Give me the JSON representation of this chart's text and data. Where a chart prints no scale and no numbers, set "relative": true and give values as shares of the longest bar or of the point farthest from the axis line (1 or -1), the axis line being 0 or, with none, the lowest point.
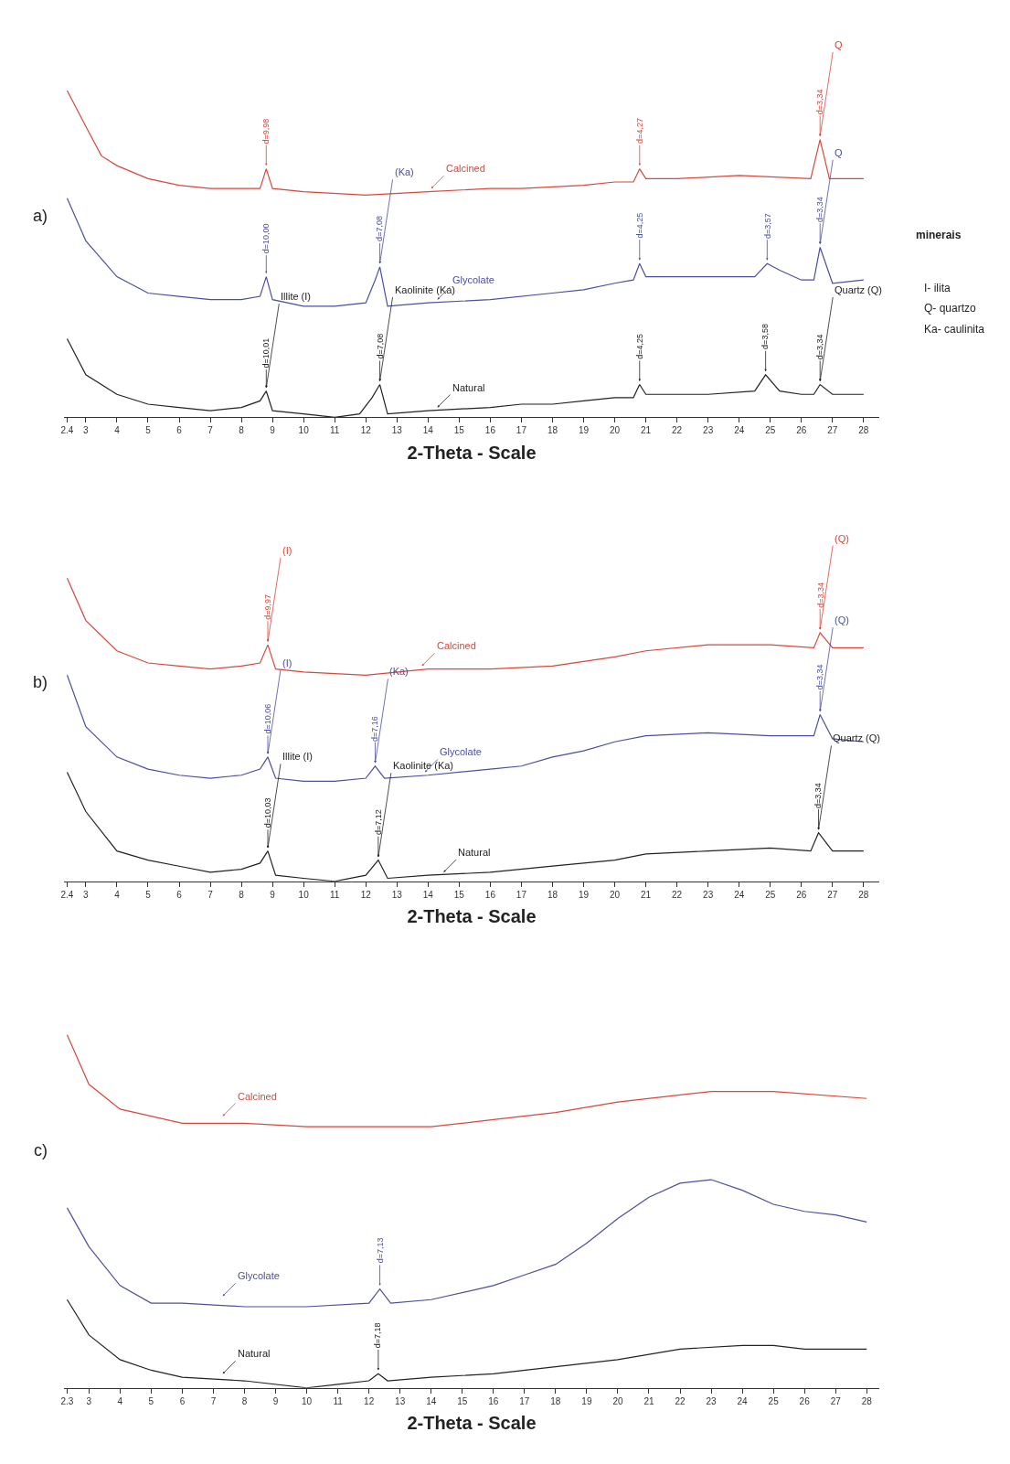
{
  "chart_data": [
    {
      "type": "line",
      "relative": true,
      "xlabel": "2-Theta - Scale",
      "tick_labels": "x",
      "xlim": [
        2.3,
        28.5
      ],
      "xticks": [
        2.4,
        3,
        4,
        5,
        6,
        7,
        8,
        9,
        10,
        11,
        12,
        13,
        14,
        15,
        16,
        17,
        18,
        19,
        20,
        21,
        22,
        23,
        24,
        25,
        26,
        27,
        28
      ],
      "series": [
        {
          "color": "#d9473b",
          "x": [
            2.4,
            3,
            3.5,
            4,
            5,
            6,
            7,
            8,
            8.6,
            8.8,
            9.0,
            10,
            12,
            14,
            16,
            17,
            19,
            20,
            20.6,
            20.8,
            21,
            22,
            24,
            26.3,
            26.6,
            26.9,
            28
          ],
          "values": [
            1.0,
            0.89,
            0.8,
            0.77,
            0.73,
            0.71,
            0.7,
            0.7,
            0.7,
            0.76,
            0.7,
            0.69,
            0.68,
            0.69,
            0.7,
            0.7,
            0.71,
            0.72,
            0.72,
            0.76,
            0.73,
            0.73,
            0.74,
            0.73,
            0.85,
            0.73,
            0.73
          ]
        },
        {
          "color": "#4a4f9e",
          "x": [
            2.4,
            3,
            4,
            5,
            6,
            7,
            8,
            8.6,
            8.8,
            9.0,
            10,
            11,
            12,
            12.3,
            12.45,
            12.7,
            14,
            16,
            18,
            19,
            20,
            20.6,
            20.8,
            21,
            23,
            24.5,
            24.9,
            25.3,
            26,
            26.4,
            26.6,
            27,
            28
          ],
          "values": [
            0.67,
            0.54,
            0.43,
            0.38,
            0.37,
            0.36,
            0.36,
            0.37,
            0.43,
            0.36,
            0.34,
            0.34,
            0.35,
            0.42,
            0.46,
            0.34,
            0.35,
            0.36,
            0.38,
            0.39,
            0.41,
            0.42,
            0.47,
            0.43,
            0.43,
            0.43,
            0.47,
            0.45,
            0.42,
            0.42,
            0.52,
            0.41,
            0.42
          ]
        },
        {
          "color": "#222222",
          "x": [
            2.4,
            3,
            4,
            5,
            6,
            7,
            8,
            8.6,
            8.8,
            9.0,
            10,
            11,
            11.8,
            12.2,
            12.45,
            12.7,
            14,
            16,
            17,
            18,
            19,
            20,
            20.6,
            20.8,
            21,
            23,
            24.5,
            24.85,
            25.3,
            26,
            26.4,
            26.6,
            27,
            28
          ],
          "values": [
            0.24,
            0.13,
            0.07,
            0.04,
            0.03,
            0.02,
            0.03,
            0.05,
            0.08,
            0.02,
            0.01,
            0,
            0.01,
            0.06,
            0.1,
            0.01,
            0.02,
            0.03,
            0.04,
            0.04,
            0.05,
            0.06,
            0.06,
            0.1,
            0.07,
            0.07,
            0.08,
            0.13,
            0.08,
            0.07,
            0.07,
            0.1,
            0.07,
            0.07
          ]
        }
      ],
      "annotations": [
        {
          "text": "d=9,98",
          "x": 8.8,
          "y": 0.77
        },
        {
          "text": "d=4,27",
          "x": 20.8,
          "y": 0.77
        },
        {
          "text": "d=3,34",
          "x": 26.6,
          "y": 0.86
        },
        {
          "text": "d=10,00",
          "x": 8.8,
          "y": 0.44
        },
        {
          "text": "d=7,08",
          "x": 12.45,
          "y": 0.47
        },
        {
          "text": "d=4,25",
          "x": 20.8,
          "y": 0.48
        },
        {
          "text": "d=3,57",
          "x": 24.9,
          "y": 0.48
        },
        {
          "text": "d=3,34",
          "x": 26.6,
          "y": 0.53
        },
        {
          "text": "d=10,01",
          "x": 8.8,
          "y": 0.09
        },
        {
          "text": "d=7,08",
          "x": 12.45,
          "y": 0.11
        },
        {
          "text": "d=4,25",
          "x": 20.8,
          "y": 0.11
        },
        {
          "text": "d=3,58",
          "x": 24.85,
          "y": 0.14
        },
        {
          "text": "d=3,34",
          "x": 26.6,
          "y": 0.11
        },
        {
          "text": "Q",
          "x": 26.6,
          "y": 0.86
        },
        {
          "text": "Q",
          "x": 26.6,
          "y": 0.53
        },
        {
          "text": "(Ka)",
          "x": 12.45,
          "y": 0.47
        },
        {
          "text": "Illite (I)",
          "x": 8.8,
          "y": 0.09
        },
        {
          "text": "Kaolinite (Ka)",
          "x": 12.45,
          "y": 0.11
        },
        {
          "text": "Quartz (Q)",
          "x": 26.6,
          "y": 0.11
        },
        {
          "text": "Calcined",
          "x": 14.1,
          "y": 0.7
        },
        {
          "text": "Glycolate",
          "x": 14.3,
          "y": 0.36
        },
        {
          "text": "Natural",
          "x": 14.3,
          "y": 0.03
        },
        "a)",
        "minerais",
        "I- ilita",
        "Q- quartzo",
        "Ka- caulinita"
      ]
    },
    {
      "type": "line",
      "relative": true,
      "xlabel": "2-Theta - Scale",
      "tick_labels": "x",
      "xlim": [
        2.3,
        28.5
      ],
      "xticks": [
        2.4,
        3,
        4,
        5,
        6,
        7,
        8,
        9,
        10,
        11,
        12,
        13,
        14,
        15,
        16,
        17,
        18,
        19,
        20,
        21,
        22,
        23,
        24,
        25,
        26,
        27,
        28
      ],
      "series": [
        {
          "color": "#d9473b",
          "x": [
            2.4,
            3,
            4,
            5,
            6,
            7,
            8,
            8.6,
            8.85,
            9.1,
            10,
            12,
            14,
            16,
            18,
            20,
            21,
            23,
            25,
            26.4,
            26.6,
            27,
            28
          ],
          "values": [
            1.0,
            0.86,
            0.76,
            0.72,
            0.71,
            0.7,
            0.71,
            0.72,
            0.78,
            0.7,
            0.69,
            0.68,
            0.7,
            0.7,
            0.71,
            0.74,
            0.76,
            0.78,
            0.78,
            0.77,
            0.82,
            0.77,
            0.77
          ]
        },
        {
          "color": "#4a4f9e",
          "x": [
            2.4,
            3,
            4,
            5,
            6,
            7,
            8,
            8.6,
            8.85,
            9.1,
            10,
            11,
            12,
            12.3,
            12.6,
            14,
            16,
            17,
            18,
            19,
            20,
            21,
            23,
            25,
            26.4,
            26.6,
            27,
            28
          ],
          "values": [
            0.68,
            0.51,
            0.41,
            0.37,
            0.35,
            0.34,
            0.35,
            0.37,
            0.41,
            0.34,
            0.33,
            0.33,
            0.34,
            0.38,
            0.34,
            0.35,
            0.37,
            0.38,
            0.41,
            0.43,
            0.46,
            0.48,
            0.49,
            0.48,
            0.48,
            0.55,
            0.47,
            0.46
          ]
        },
        {
          "color": "#222222",
          "x": [
            2.4,
            3,
            4,
            5,
            6,
            7,
            8,
            8.6,
            8.85,
            9.1,
            10,
            11,
            12,
            12.4,
            12.7,
            14,
            16,
            18,
            20,
            21,
            23,
            25,
            26.3,
            26.55,
            27,
            28
          ],
          "values": [
            0.36,
            0.23,
            0.1,
            0.07,
            0.05,
            0.03,
            0.04,
            0.06,
            0.1,
            0.02,
            0.01,
            0,
            0.02,
            0.07,
            0.01,
            0.02,
            0.03,
            0.05,
            0.07,
            0.09,
            0.1,
            0.11,
            0.1,
            0.16,
            0.1,
            0.1
          ]
        }
      ],
      "annotations": [
        {
          "text": "d=9,97",
          "x": 8.85,
          "y": 0.79
        },
        {
          "text": "d=3,34",
          "x": 26.6,
          "y": 0.83
        },
        {
          "text": "d=10,06",
          "x": 8.85,
          "y": 0.42
        },
        {
          "text": "d=7,16",
          "x": 12.3,
          "y": 0.39
        },
        {
          "text": "d=3,34",
          "x": 26.6,
          "y": 0.56
        },
        {
          "text": "d=10,03",
          "x": 8.85,
          "y": 0.11
        },
        {
          "text": "d=7,12",
          "x": 12.4,
          "y": 0.08
        },
        {
          "text": "d=3,34",
          "x": 26.55,
          "y": 0.17
        },
        {
          "text": "(I)",
          "x": 8.85,
          "y": 0.79
        },
        {
          "text": "(Q)",
          "x": 26.6,
          "y": 0.83
        },
        {
          "text": "Calcined",
          "x": 13.8,
          "y": 0.71
        },
        {
          "text": "(I)",
          "x": 8.85,
          "y": 0.42
        },
        {
          "text": "(Ka)",
          "x": 12.3,
          "y": 0.39
        },
        {
          "text": "(Q)",
          "x": 26.6,
          "y": 0.56
        },
        {
          "text": "Glycolate",
          "x": 13.9,
          "y": 0.36
        },
        {
          "text": "Illite (I)",
          "x": 8.85,
          "y": 0.11
        },
        {
          "text": "Kaolinite (Ka)",
          "x": 12.4,
          "y": 0.08
        },
        {
          "text": "Natural",
          "x": 14.5,
          "y": 0.03
        },
        {
          "text": "Quartz (Q)",
          "x": 26.55,
          "y": 0.17
        },
        "b)"
      ]
    },
    {
      "type": "line",
      "relative": true,
      "xlabel": "2-Theta - Scale",
      "tick_labels": "x",
      "xlim": [
        2.2,
        28.4
      ],
      "xticks": [
        2.3,
        3,
        4,
        5,
        6,
        7,
        8,
        9,
        10,
        11,
        12,
        13,
        14,
        15,
        16,
        17,
        18,
        19,
        20,
        21,
        22,
        23,
        24,
        25,
        26,
        27,
        28
      ],
      "series": [
        {
          "color": "#d9473b",
          "x": [
            2.3,
            3,
            4,
            5,
            6,
            8,
            10,
            12,
            14,
            16,
            18,
            20,
            22,
            23,
            25,
            28
          ],
          "values": [
            1.0,
            0.86,
            0.79,
            0.77,
            0.75,
            0.75,
            0.74,
            0.74,
            0.74,
            0.76,
            0.78,
            0.81,
            0.83,
            0.84,
            0.84,
            0.82
          ]
        },
        {
          "color": "#4a4f9e",
          "x": [
            2.3,
            3,
            4,
            5,
            6,
            8,
            10,
            12,
            12.35,
            12.7,
            14,
            16,
            17,
            18,
            19,
            20,
            21,
            22,
            23,
            24,
            25,
            26,
            27,
            28
          ],
          "values": [
            0.51,
            0.4,
            0.29,
            0.24,
            0.24,
            0.23,
            0.23,
            0.24,
            0.28,
            0.24,
            0.25,
            0.29,
            0.32,
            0.35,
            0.41,
            0.48,
            0.54,
            0.58,
            0.59,
            0.56,
            0.52,
            0.5,
            0.49,
            0.47
          ]
        },
        {
          "color": "#222222",
          "x": [
            2.3,
            3,
            4,
            5,
            6,
            8,
            10,
            11,
            12,
            12.3,
            12.6,
            14,
            16,
            18,
            20,
            22,
            24,
            25,
            26,
            28
          ],
          "values": [
            0.25,
            0.15,
            0.08,
            0.05,
            0.03,
            0.02,
            0,
            0.01,
            0.02,
            0.04,
            0.02,
            0.03,
            0.04,
            0.06,
            0.08,
            0.11,
            0.12,
            0.12,
            0.11,
            0.11
          ]
        }
      ],
      "annotations": [
        {
          "text": "d=7,13",
          "x": 12.35,
          "y": 0.29
        },
        {
          "text": "d=7,18",
          "x": 12.3,
          "y": 0.05
        },
        {
          "text": "Calcined",
          "x": 7.3,
          "y": 0.77
        },
        {
          "text": "Glycolate",
          "x": 7.3,
          "y": 0.26
        },
        {
          "text": "Natural",
          "x": 7.3,
          "y": 0.04
        },
        "c)"
      ]
    }
  ]
}
